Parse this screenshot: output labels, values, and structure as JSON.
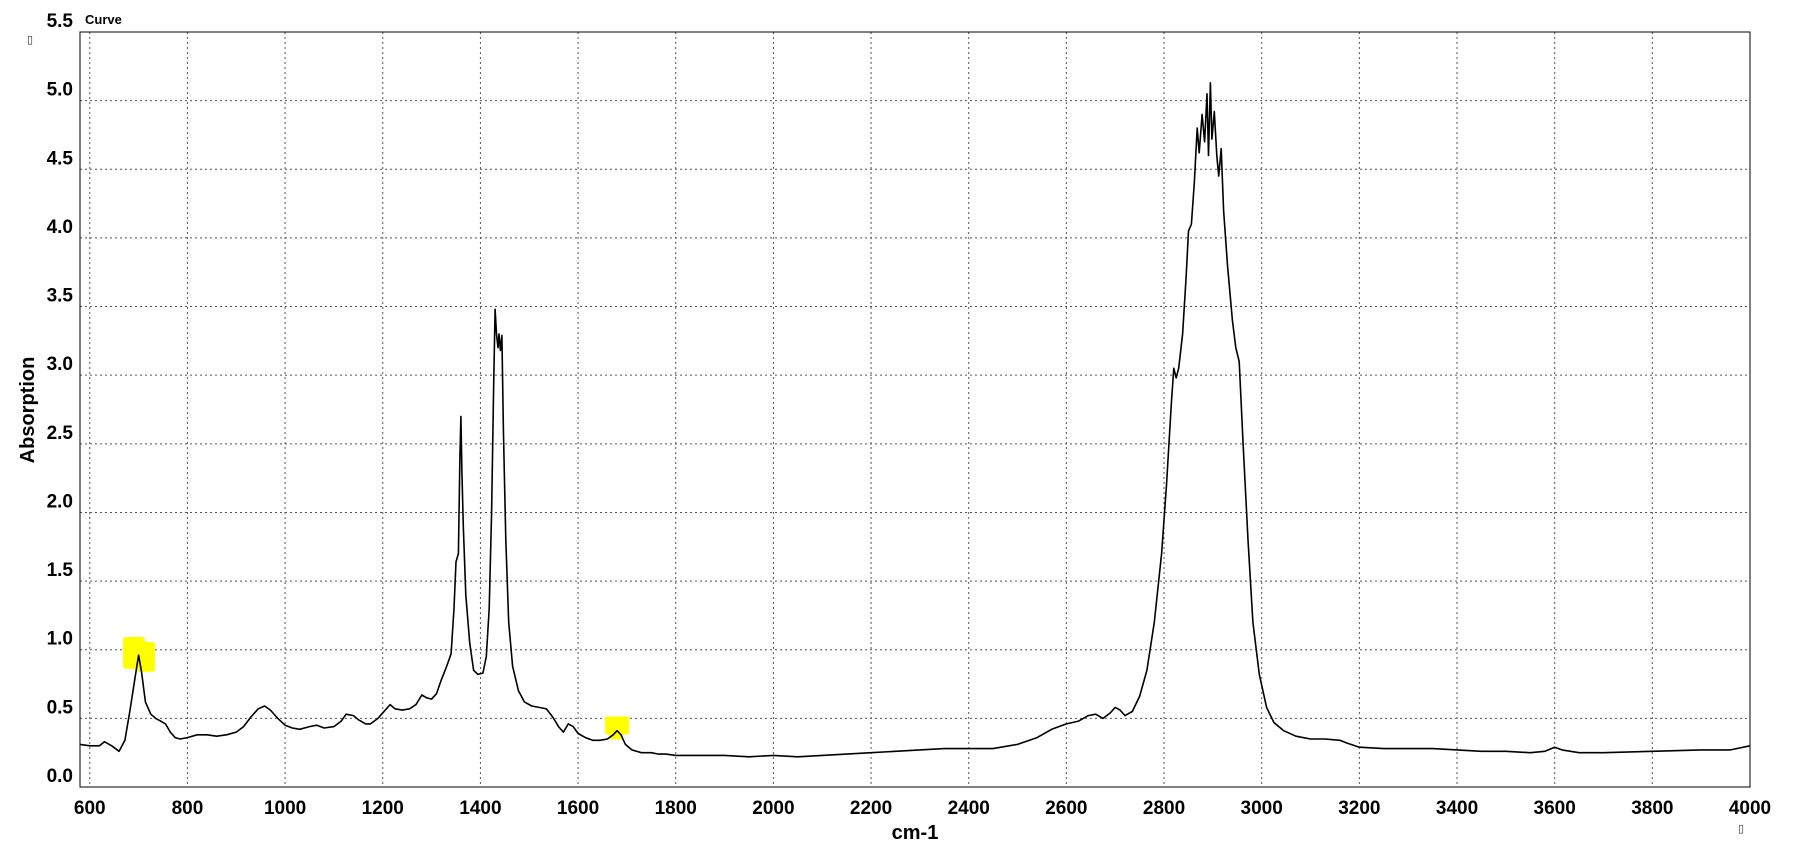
{
  "chart_data": {
    "type": "line",
    "title": "",
    "xlabel": "cm-1",
    "ylabel": "Absorption",
    "series_label": "Curve",
    "xlim": [
      580,
      4000
    ],
    "ylim": [
      0.0,
      5.5
    ],
    "x_ticks": [
      "600",
      "800",
      "1000",
      "1200",
      "1400",
      "1600",
      "1800",
      "2000",
      "2200",
      "2400",
      "2600",
      "2800",
      "3000",
      "3200",
      "3400",
      "3600",
      "3800",
      "4000"
    ],
    "y_ticks": [
      "0.0",
      "0.5",
      "1.0",
      "1.5",
      "2.0",
      "2.5",
      "3.0",
      "3.5",
      "4.0",
      "4.5",
      "5.0",
      "5.5"
    ],
    "grid": true,
    "grid_style": "dotted",
    "line_color": "#000000",
    "highlight_color": "#ffff00",
    "highlights": [
      {
        "x": 705,
        "y": 0.97
      },
      {
        "x": 1680,
        "y": 0.42
      }
    ],
    "corner_glyphs": [
      "▯",
      "▯"
    ],
    "series": [
      {
        "points": [
          [
            580,
            0.31
          ],
          [
            600,
            0.3
          ],
          [
            620,
            0.3
          ],
          [
            630,
            0.33
          ],
          [
            645,
            0.3
          ],
          [
            660,
            0.26
          ],
          [
            672,
            0.34
          ],
          [
            682,
            0.55
          ],
          [
            692,
            0.78
          ],
          [
            700,
            0.96
          ],
          [
            706,
            0.84
          ],
          [
            714,
            0.62
          ],
          [
            725,
            0.53
          ],
          [
            735,
            0.5
          ],
          [
            745,
            0.48
          ],
          [
            755,
            0.46
          ],
          [
            765,
            0.4
          ],
          [
            775,
            0.36
          ],
          [
            785,
            0.35
          ],
          [
            800,
            0.36
          ],
          [
            820,
            0.38
          ],
          [
            840,
            0.38
          ],
          [
            860,
            0.37
          ],
          [
            880,
            0.38
          ],
          [
            900,
            0.4
          ],
          [
            915,
            0.44
          ],
          [
            930,
            0.51
          ],
          [
            945,
            0.57
          ],
          [
            958,
            0.59
          ],
          [
            970,
            0.56
          ],
          [
            985,
            0.5
          ],
          [
            1000,
            0.45
          ],
          [
            1015,
            0.43
          ],
          [
            1030,
            0.42
          ],
          [
            1050,
            0.44
          ],
          [
            1065,
            0.45
          ],
          [
            1080,
            0.43
          ],
          [
            1100,
            0.44
          ],
          [
            1115,
            0.48
          ],
          [
            1125,
            0.53
          ],
          [
            1140,
            0.52
          ],
          [
            1150,
            0.49
          ],
          [
            1165,
            0.46
          ],
          [
            1175,
            0.46
          ],
          [
            1190,
            0.5
          ],
          [
            1205,
            0.56
          ],
          [
            1215,
            0.6
          ],
          [
            1225,
            0.57
          ],
          [
            1240,
            0.56
          ],
          [
            1255,
            0.57
          ],
          [
            1268,
            0.6
          ],
          [
            1280,
            0.67
          ],
          [
            1290,
            0.65
          ],
          [
            1300,
            0.64
          ],
          [
            1310,
            0.68
          ],
          [
            1320,
            0.78
          ],
          [
            1330,
            0.87
          ],
          [
            1340,
            0.97
          ],
          [
            1346,
            1.3
          ],
          [
            1350,
            1.64
          ],
          [
            1355,
            1.7
          ],
          [
            1358,
            2.4
          ],
          [
            1360,
            2.7
          ],
          [
            1362,
            2.3
          ],
          [
            1365,
            1.9
          ],
          [
            1370,
            1.4
          ],
          [
            1378,
            1.05
          ],
          [
            1386,
            0.85
          ],
          [
            1395,
            0.82
          ],
          [
            1405,
            0.83
          ],
          [
            1412,
            0.95
          ],
          [
            1418,
            1.3
          ],
          [
            1423,
            2.0
          ],
          [
            1427,
            2.9
          ],
          [
            1430,
            3.48
          ],
          [
            1433,
            3.3
          ],
          [
            1436,
            3.2
          ],
          [
            1438,
            3.3
          ],
          [
            1441,
            3.18
          ],
          [
            1444,
            3.29
          ],
          [
            1447,
            2.6
          ],
          [
            1452,
            1.8
          ],
          [
            1458,
            1.2
          ],
          [
            1466,
            0.88
          ],
          [
            1478,
            0.7
          ],
          [
            1490,
            0.62
          ],
          [
            1505,
            0.59
          ],
          [
            1520,
            0.58
          ],
          [
            1535,
            0.57
          ],
          [
            1548,
            0.51
          ],
          [
            1560,
            0.44
          ],
          [
            1570,
            0.4
          ],
          [
            1580,
            0.46
          ],
          [
            1590,
            0.44
          ],
          [
            1600,
            0.39
          ],
          [
            1615,
            0.36
          ],
          [
            1630,
            0.34
          ],
          [
            1645,
            0.34
          ],
          [
            1660,
            0.35
          ],
          [
            1672,
            0.38
          ],
          [
            1680,
            0.41
          ],
          [
            1688,
            0.38
          ],
          [
            1697,
            0.31
          ],
          [
            1710,
            0.27
          ],
          [
            1730,
            0.25
          ],
          [
            1750,
            0.25
          ],
          [
            1765,
            0.24
          ],
          [
            1780,
            0.24
          ],
          [
            1800,
            0.23
          ],
          [
            1850,
            0.23
          ],
          [
            1900,
            0.23
          ],
          [
            1950,
            0.22
          ],
          [
            2000,
            0.23
          ],
          [
            2050,
            0.22
          ],
          [
            2100,
            0.23
          ],
          [
            2150,
            0.24
          ],
          [
            2200,
            0.25
          ],
          [
            2250,
            0.26
          ],
          [
            2300,
            0.27
          ],
          [
            2350,
            0.28
          ],
          [
            2400,
            0.28
          ],
          [
            2450,
            0.28
          ],
          [
            2500,
            0.31
          ],
          [
            2540,
            0.36
          ],
          [
            2570,
            0.42
          ],
          [
            2600,
            0.46
          ],
          [
            2625,
            0.48
          ],
          [
            2645,
            0.52
          ],
          [
            2660,
            0.53
          ],
          [
            2675,
            0.5
          ],
          [
            2690,
            0.54
          ],
          [
            2700,
            0.58
          ],
          [
            2710,
            0.56
          ],
          [
            2720,
            0.52
          ],
          [
            2735,
            0.55
          ],
          [
            2750,
            0.66
          ],
          [
            2765,
            0.85
          ],
          [
            2780,
            1.2
          ],
          [
            2795,
            1.7
          ],
          [
            2805,
            2.2
          ],
          [
            2815,
            2.8
          ],
          [
            2820,
            3.05
          ],
          [
            2825,
            2.98
          ],
          [
            2830,
            3.05
          ],
          [
            2838,
            3.3
          ],
          [
            2845,
            3.7
          ],
          [
            2850,
            4.05
          ],
          [
            2856,
            4.1
          ],
          [
            2862,
            4.4
          ],
          [
            2868,
            4.8
          ],
          [
            2872,
            4.62
          ],
          [
            2878,
            4.9
          ],
          [
            2883,
            4.7
          ],
          [
            2888,
            5.05
          ],
          [
            2891,
            4.6
          ],
          [
            2895,
            5.13
          ],
          [
            2898,
            4.72
          ],
          [
            2903,
            4.92
          ],
          [
            2908,
            4.6
          ],
          [
            2912,
            4.45
          ],
          [
            2917,
            4.65
          ],
          [
            2922,
            4.2
          ],
          [
            2930,
            3.8
          ],
          [
            2940,
            3.4
          ],
          [
            2947,
            3.2
          ],
          [
            2954,
            3.1
          ],
          [
            2962,
            2.5
          ],
          [
            2972,
            1.8
          ],
          [
            2982,
            1.2
          ],
          [
            2995,
            0.82
          ],
          [
            3010,
            0.58
          ],
          [
            3025,
            0.47
          ],
          [
            3045,
            0.41
          ],
          [
            3070,
            0.37
          ],
          [
            3100,
            0.35
          ],
          [
            3130,
            0.35
          ],
          [
            3160,
            0.34
          ],
          [
            3175,
            0.32
          ],
          [
            3200,
            0.29
          ],
          [
            3250,
            0.28
          ],
          [
            3300,
            0.28
          ],
          [
            3350,
            0.28
          ],
          [
            3400,
            0.27
          ],
          [
            3450,
            0.26
          ],
          [
            3500,
            0.26
          ],
          [
            3550,
            0.25
          ],
          [
            3580,
            0.26
          ],
          [
            3600,
            0.29
          ],
          [
            3615,
            0.27
          ],
          [
            3650,
            0.25
          ],
          [
            3700,
            0.25
          ],
          [
            3800,
            0.26
          ],
          [
            3900,
            0.27
          ],
          [
            3960,
            0.27
          ],
          [
            4000,
            0.3
          ]
        ]
      }
    ]
  }
}
